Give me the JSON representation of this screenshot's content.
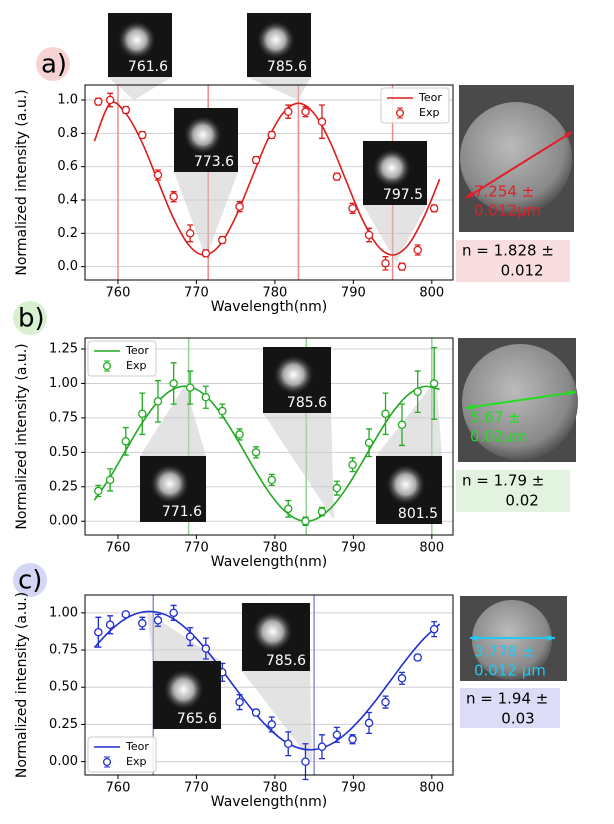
{
  "chart_data": [
    {
      "type": "line",
      "label": "a)",
      "label_color": "#f6d3d3",
      "xlabel": "Wavelength(nm)",
      "ylabel": "Normalized intensity (a.u.)",
      "xlim": [
        755.8,
        802.7
      ],
      "ylim": [
        -0.08,
        1.09
      ],
      "xticks": [
        760,
        770,
        780,
        790,
        800
      ],
      "yticks": [
        {
          "value": 0,
          "label": "0.0"
        },
        0.2,
        0.4,
        0.6,
        0.8,
        {
          "value": 1,
          "label": "1.0"
        }
      ],
      "grid": true,
      "legend": "upper right",
      "vlines": [
        760,
        771.5,
        783,
        795
      ],
      "vline_color": "#f08a8a",
      "series": [
        {
          "name": "Teor",
          "color": "#dd1c1c",
          "x": [
            757,
            759,
            761,
            763,
            765,
            767,
            769,
            771,
            773,
            775,
            777,
            779,
            781,
            783,
            785,
            787,
            789,
            791,
            793,
            795,
            797,
            799,
            801
          ],
          "values": [
            0.753,
            0.98,
            0.919,
            0.753,
            0.525,
            0.298,
            0.131,
            0.07,
            0.131,
            0.298,
            0.525,
            0.753,
            0.919,
            0.98,
            0.919,
            0.753,
            0.525,
            0.298,
            0.131,
            0.07,
            0.131,
            0.298,
            0.525
          ]
        },
        {
          "name": "Exp",
          "color": "#dd1c1c",
          "x": [
            757.5,
            759.0,
            761.0,
            763.1,
            765.1,
            767.1,
            769.2,
            771.2,
            773.3,
            775.5,
            777.6,
            779.6,
            781.7,
            783.9,
            786.0,
            787.9,
            789.9,
            792.0,
            794.1,
            796.2,
            798.2,
            800.3
          ],
          "values": [
            0.99,
            1.0,
            0.94,
            0.79,
            0.55,
            0.42,
            0.2,
            0.08,
            0.16,
            0.36,
            0.64,
            0.79,
            0.93,
            0.93,
            0.87,
            0.54,
            0.35,
            0.19,
            0.02,
            0.0,
            0.1,
            0.35
          ],
          "errors": [
            0.02,
            0.04,
            0.02,
            0.02,
            0.03,
            0.03,
            0.05,
            0.02,
            0.02,
            0.03,
            0.02,
            0.02,
            0.04,
            0.03,
            0.1,
            0.02,
            0.03,
            0.04,
            0.04,
            0.02,
            0.03,
            0.02
          ]
        }
      ],
      "insets": [
        "761.6",
        "785.6",
        "773.6",
        "797.5"
      ],
      "size_label": [
        "7.254 ±",
        "0.012μm"
      ],
      "size_color": "#e0202a",
      "n_label": [
        "n = 1.828 ±",
        "0.012"
      ],
      "n_color": "#f8dede"
    },
    {
      "type": "line",
      "label": "b)",
      "label_color": "#d6f0d0",
      "xlabel": "Wavelength(nm)",
      "ylabel": "Normalized intensity (a.u.)",
      "xlim": [
        755.8,
        802.7
      ],
      "ylim": [
        -0.1,
        1.33
      ],
      "xticks": [
        760,
        770,
        780,
        790,
        800
      ],
      "yticks": [
        {
          "value": 0,
          "label": "0.00"
        },
        {
          "value": 0.25,
          "label": "0.25"
        },
        {
          "value": 0.5,
          "label": "0.50"
        },
        {
          "value": 0.75,
          "label": "0.75"
        },
        {
          "value": 1,
          "label": "1.00"
        },
        {
          "value": 1.25,
          "label": "1.25"
        }
      ],
      "grid": true,
      "legend": "upper left",
      "vlines": [
        769,
        784,
        800
      ],
      "vline_color": "#93d493",
      "series": [
        {
          "name": "Teor",
          "color": "#22aa22",
          "x": [
            757,
            759,
            761,
            763,
            765,
            767,
            769,
            771,
            773,
            775,
            777,
            779,
            781,
            783,
            785,
            787,
            789,
            791,
            793,
            795,
            797,
            799,
            801
          ],
          "values": [
            0.153,
            0.32,
            0.515,
            0.706,
            0.862,
            0.957,
            0.978,
            0.919,
            0.79,
            0.613,
            0.416,
            0.231,
            0.088,
            0.01,
            0.01,
            0.088,
            0.231,
            0.416,
            0.613,
            0.79,
            0.919,
            0.978,
            0.957
          ]
        },
        {
          "name": "Exp",
          "color": "#22aa22",
          "x": [
            757.5,
            759.0,
            761.0,
            763.1,
            765.1,
            767.1,
            769.2,
            771.2,
            773.3,
            775.5,
            777.6,
            779.6,
            781.7,
            783.9,
            786.0,
            787.9,
            789.9,
            792.0,
            794.1,
            796.2,
            798.2,
            800.3
          ],
          "values": [
            0.22,
            0.3,
            0.58,
            0.78,
            0.87,
            1.0,
            0.97,
            0.9,
            0.8,
            0.63,
            0.5,
            0.3,
            0.09,
            0.0,
            0.07,
            0.24,
            0.41,
            0.57,
            0.78,
            0.7,
            0.94,
            1.0
          ],
          "errors": [
            0.04,
            0.08,
            0.1,
            0.15,
            0.15,
            0.15,
            0.12,
            0.08,
            0.05,
            0.04,
            0.04,
            0.04,
            0.06,
            0.03,
            0.03,
            0.05,
            0.05,
            0.1,
            0.15,
            0.15,
            0.15,
            0.26
          ]
        }
      ],
      "insets": [
        "785.6",
        "771.6",
        "801.5"
      ],
      "size_label": [
        "5.67 ±",
        "0.02μm"
      ],
      "size_color": "#22dd22",
      "n_label": [
        "n = 1.79 ±",
        "0.02"
      ],
      "n_color": "#e2f3e0"
    },
    {
      "type": "line",
      "label": "c)",
      "label_color": "#d4d6f5",
      "xlabel": "Wavelength(nm)",
      "ylabel": "Normalized intensity (a.u.)",
      "xlim": [
        755.8,
        802.7
      ],
      "ylim": [
        -0.09,
        1.12
      ],
      "xticks": [
        760,
        770,
        780,
        790,
        800
      ],
      "yticks": [
        {
          "value": 0,
          "label": "0.00"
        },
        {
          "value": 0.25,
          "label": "0.25"
        },
        {
          "value": 0.5,
          "label": "0.50"
        },
        {
          "value": 0.75,
          "label": "0.75"
        },
        {
          "value": 1,
          "label": "1.00"
        }
      ],
      "grid": true,
      "legend": "lower left",
      "vlines": [
        764.5,
        785
      ],
      "vline_color": "#8f8fdc",
      "series": [
        {
          "name": "Teor",
          "color": "#1f2fd0",
          "x": [
            757,
            759,
            761,
            763,
            765,
            767,
            769,
            771,
            773,
            775,
            777,
            779,
            781,
            783,
            785,
            787,
            789,
            791,
            793,
            795,
            797,
            799,
            801
          ],
          "values": [
            0.767,
            0.88,
            0.962,
            1.004,
            1.004,
            0.962,
            0.88,
            0.767,
            0.634,
            0.492,
            0.355,
            0.236,
            0.145,
            0.092,
            0.081,
            0.113,
            0.186,
            0.292,
            0.421,
            0.563,
            0.703,
            0.827,
            0.925
          ]
        },
        {
          "name": "Exp",
          "color": "#1f2fd0",
          "x": [
            757.5,
            759.0,
            761.0,
            763.1,
            765.1,
            767.1,
            769.2,
            771.2,
            773.3,
            775.5,
            777.6,
            779.6,
            781.7,
            783.9,
            786.0,
            787.9,
            789.9,
            792.0,
            794.1,
            796.2,
            798.2,
            800.3
          ],
          "values": [
            0.87,
            0.92,
            0.99,
            0.93,
            0.95,
            1.0,
            0.84,
            0.76,
            0.6,
            0.4,
            0.33,
            0.25,
            0.12,
            0.0,
            0.1,
            0.18,
            0.15,
            0.26,
            0.4,
            0.56,
            0.7,
            0.89
          ],
          "errors": [
            0.1,
            0.06,
            0.01,
            0.04,
            0.04,
            0.05,
            0.06,
            0.07,
            0.06,
            0.05,
            0.02,
            0.05,
            0.08,
            0.12,
            0.08,
            0.05,
            0.03,
            0.07,
            0.04,
            0.04,
            0.02,
            0.05
          ]
        }
      ],
      "insets": [
        "785.6",
        "765.6"
      ],
      "size_label": [
        "3.778 ±",
        "0.012 μm"
      ],
      "size_color": "#22c8f0",
      "n_label": [
        "n = 1.94 ±",
        "0.03"
      ],
      "n_color": "#dcdcf6"
    }
  ]
}
